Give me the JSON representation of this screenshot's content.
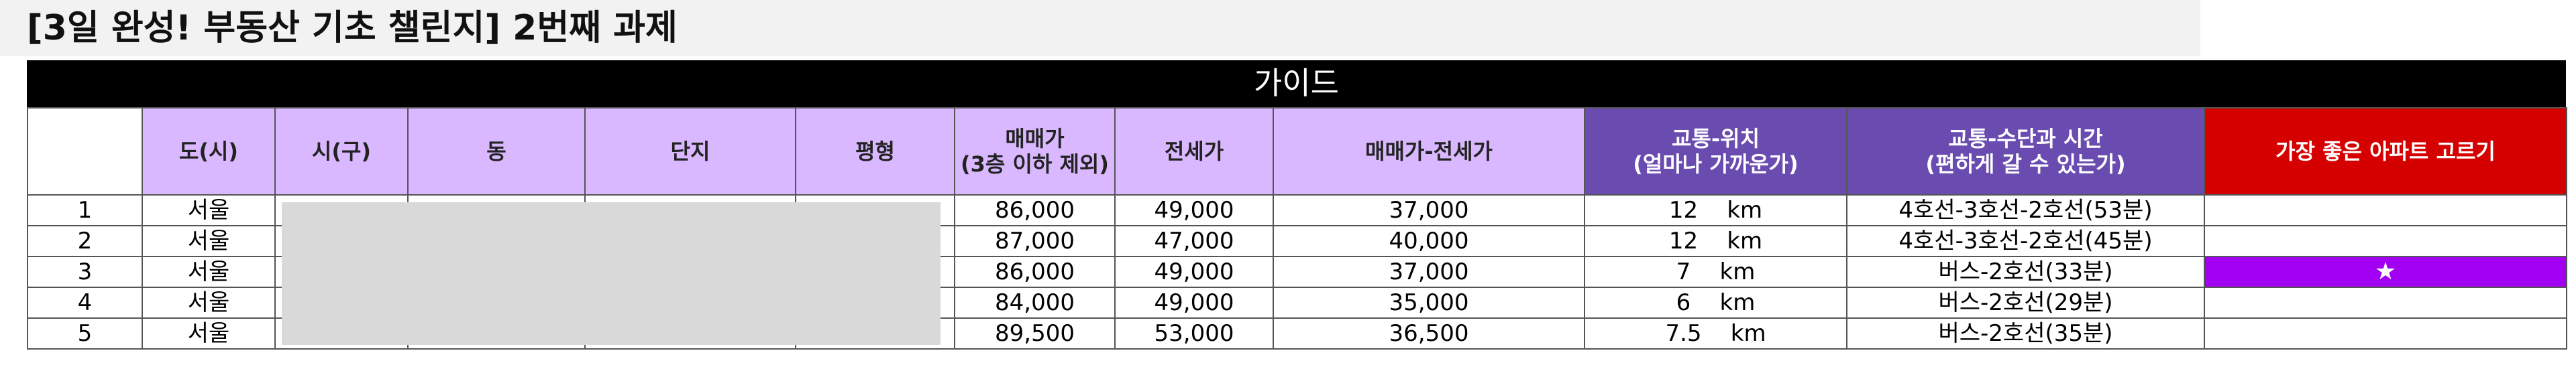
{
  "title": "[3일 완성! 부동산 기초 챌린지] 2번째 과제",
  "guide": "가이드",
  "headers": {
    "row_no": "",
    "city": "도(시)",
    "district": "시(구)",
    "dong": "동",
    "complex": "단지",
    "size": "평형",
    "sale_price_line1": "매매가",
    "sale_price_line2": "(3층 이하 제외)",
    "jeonse": "전세가",
    "gap": "매매가-전세가",
    "location_line1": "교통-위치",
    "location_line2": "(얼마나 가까운가)",
    "transit_line1": "교통-수단과 시간",
    "transit_line2": "(편하게 갈 수 있는가)",
    "best": "가장 좋은 아파트 고르기"
  },
  "rows": [
    {
      "no": "1",
      "city": "서울",
      "sale": "86,000",
      "jeonse": "49,000",
      "gap": "37,000",
      "dist": "12",
      "unit": "km",
      "transit": "4호선-3호선-2호선(53분)",
      "best": ""
    },
    {
      "no": "2",
      "city": "서울",
      "sale": "87,000",
      "jeonse": "47,000",
      "gap": "40,000",
      "dist": "12",
      "unit": "km",
      "transit": "4호선-3호선-2호선(45분)",
      "best": ""
    },
    {
      "no": "3",
      "city": "서울",
      "sale": "86,000",
      "jeonse": "49,000",
      "gap": "37,000",
      "dist": "7",
      "unit": "km",
      "transit": "버스-2호선(33분)",
      "best": "★"
    },
    {
      "no": "4",
      "city": "서울",
      "sale": "84,000",
      "jeonse": "49,000",
      "gap": "35,000",
      "dist": "6",
      "unit": "km",
      "transit": "버스-2호선(29분)",
      "best": ""
    },
    {
      "no": "5",
      "city": "서울",
      "sale": "89,500",
      "jeonse": "53,000",
      "gap": "36,500",
      "dist": "7.5",
      "unit": "km",
      "transit": "버스-2호선(35분)",
      "best": ""
    }
  ],
  "colors": {
    "header_light": "#d9b8ff",
    "header_dark": "#6a4cb0",
    "header_red": "#d50000",
    "highlight": "#a100f2",
    "redaction": "#d9d9d9"
  }
}
